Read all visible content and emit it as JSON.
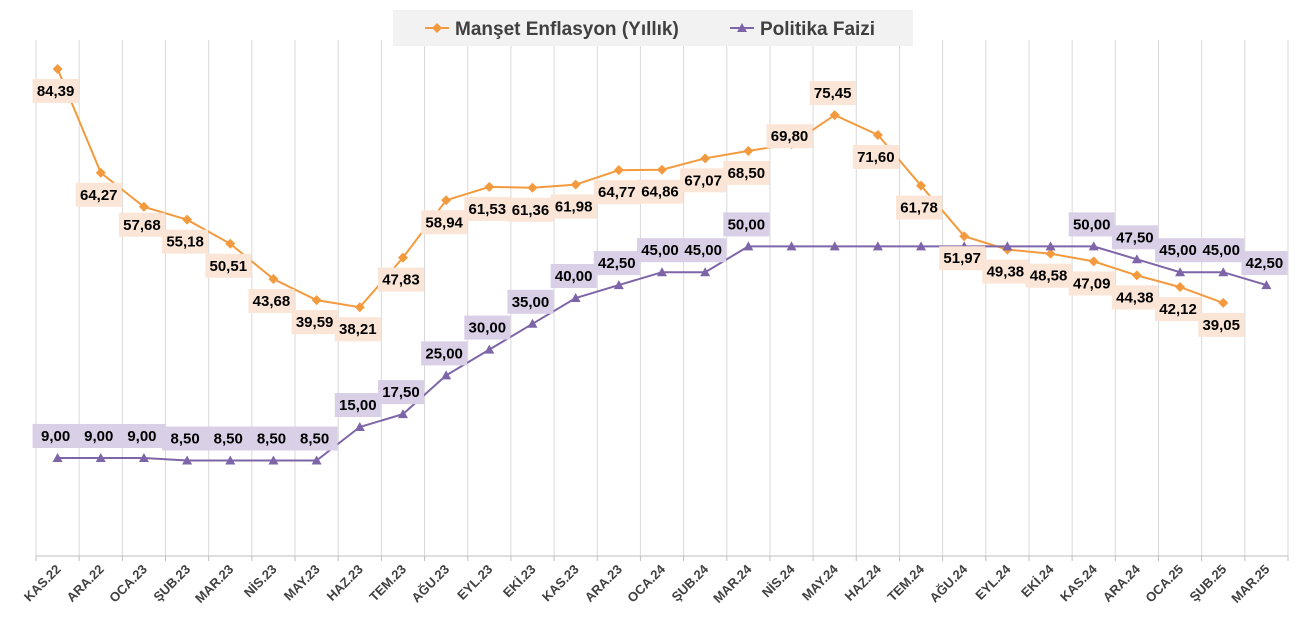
{
  "chart_data": {
    "type": "line",
    "categories": [
      "KAS.22",
      "ARA.22",
      "OCA.23",
      "ŞUB.23",
      "MAR.23",
      "NİS.23",
      "MAY.23",
      "HAZ.23",
      "TEM.23",
      "AĞU.23",
      "EYL.23",
      "EKİ.23",
      "KAS.23",
      "ARA.23",
      "OCA.24",
      "ŞUB.24",
      "MAR.24",
      "NİS.24",
      "MAY.24",
      "HAZ.24",
      "TEM.24",
      "AĞU.24",
      "EYL.24",
      "EKİ.24",
      "KAS.24",
      "ARA.24",
      "OCA.25",
      "ŞUB.25",
      "MAR.25"
    ],
    "series": [
      {
        "name": "Manşet Enflasyon (Yıllık)",
        "color": "#f39a3e",
        "label_bg": "#fbe5d6",
        "marker": "diamond",
        "values": [
          84.39,
          64.27,
          57.68,
          55.18,
          50.51,
          43.68,
          39.59,
          38.21,
          47.83,
          58.94,
          61.53,
          61.36,
          61.98,
          64.77,
          64.86,
          67.07,
          68.5,
          69.8,
          75.45,
          71.6,
          61.78,
          51.97,
          49.38,
          48.58,
          47.09,
          44.38,
          42.12,
          39.05,
          null
        ],
        "labels": [
          "84,39",
          "64,27",
          "57,68",
          "55,18",
          "50,51",
          "43,68",
          "39,59",
          "38,21",
          "47,83",
          "58,94",
          "61,53",
          "61,36",
          "61,98",
          "64,77",
          "64,86",
          "67,07",
          "68,50",
          "69,80",
          "75,45",
          "71,60",
          "61,78",
          "51,97",
          "49,38",
          "48,58",
          "47,09",
          "44,38",
          "42,12",
          "39,05",
          ""
        ]
      },
      {
        "name": "Politika Faizi",
        "color": "#7e65a8",
        "label_bg": "#d9cfe6",
        "marker": "triangle",
        "values": [
          9.0,
          9.0,
          9.0,
          8.5,
          8.5,
          8.5,
          8.5,
          15.0,
          17.5,
          25.0,
          30.0,
          35.0,
          40.0,
          42.5,
          45.0,
          45.0,
          50.0,
          50.0,
          50.0,
          50.0,
          50.0,
          50.0,
          50.0,
          50.0,
          50.0,
          47.5,
          45.0,
          45.0,
          42.5
        ],
        "labels": [
          "9,00",
          "9,00",
          "9,00",
          "8,50",
          "8,50",
          "8,50",
          "8,50",
          "15,00",
          "17,50",
          "25,00",
          "30,00",
          "35,00",
          "40,00",
          "42,50",
          "45,00",
          "45,00",
          "50,00",
          "",
          "",
          "",
          "",
          "",
          "",
          "",
          "50,00",
          "47,50",
          "45,00",
          "45,00",
          "42,50"
        ]
      }
    ],
    "ylim": [
      -10,
      90
    ],
    "grid": "vertical",
    "legend_position": "top"
  }
}
